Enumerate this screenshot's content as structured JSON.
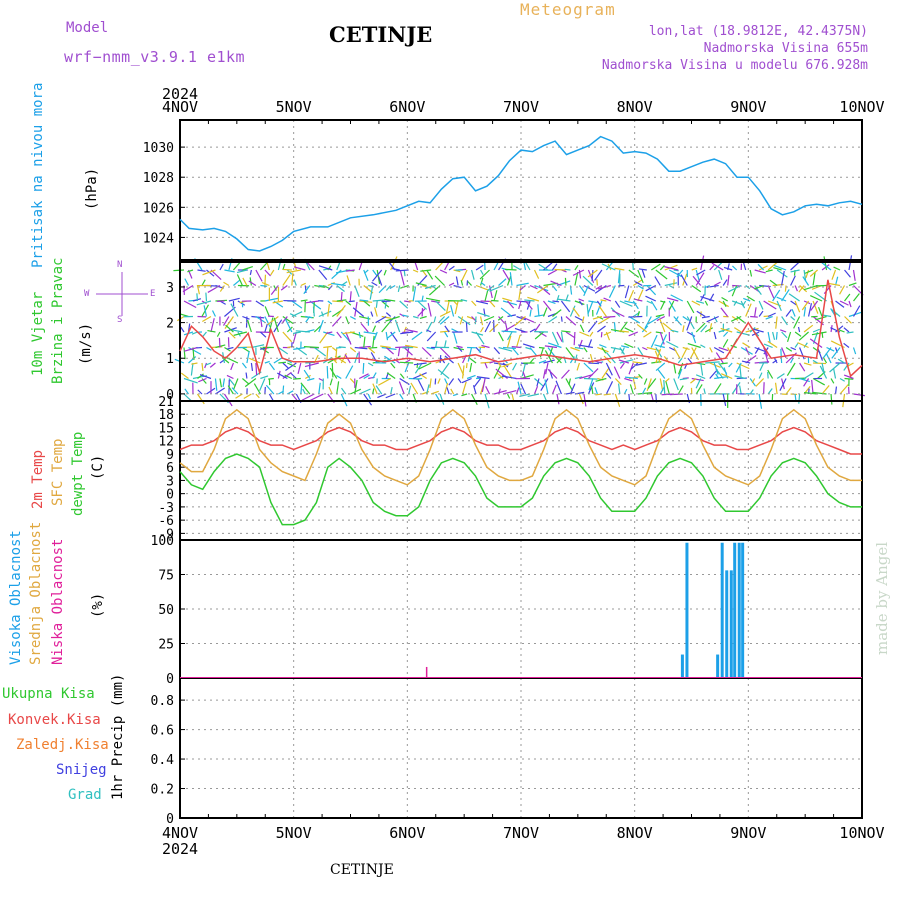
{
  "header": {
    "title": "CETINJE",
    "model_label": "Model",
    "model_name": "wrf−nmm_v3.9.1  e1km",
    "product": "Meteogram",
    "lonlat": "lon,lat (18.9812E, 42.4375N)",
    "altitude": "Nadmorska Visina 655m",
    "model_altitude": "Nadmorska Visina u modelu 676.928m",
    "credit": "made by Angel",
    "footer_title": "CETINJE"
  },
  "colors": {
    "pressure": "#1ca0e8",
    "temp2m": "#e84848",
    "sfc_temp": "#e0a840",
    "dewpoint": "#30c830",
    "high_cloud": "#1ca0e8",
    "low_cloud": "#e0209a",
    "precip_total": "#30c830",
    "precip_conv": "#e84848",
    "precip_frozen": "#f08030",
    "snow": "#4040e0",
    "grad": "#30c0c0"
  },
  "time_axis": {
    "year": "2024",
    "ticks": [
      "4NOV",
      "5NOV",
      "6NOV",
      "7NOV",
      "8NOV",
      "9NOV",
      "10NOV"
    ]
  },
  "panel_labels": {
    "pressure": [
      "Pritisak na nivou mora",
      "(hPa)"
    ],
    "wind": [
      "10m Vjetar",
      "Brzina i Pravac",
      "(m/s)"
    ],
    "compass": {
      "n": "N",
      "e": "E",
      "w": "W",
      "s": "S"
    },
    "temp": [
      "2m Temp",
      "SFC Temp",
      "dewpt Temp",
      "(C)"
    ],
    "cloud": [
      "Visoka Oblacnost",
      "Srednja Oblacnost",
      "Niska Oblacnost",
      "(%)"
    ],
    "precip_unit": "1hr Precip (mm)",
    "precip_legend": [
      "Ukupna Kisa",
      "Konvek.Kisa",
      "Zaledj.Kisa",
      "Snijeg",
      "Grad"
    ]
  },
  "chart_data": [
    {
      "type": "line",
      "ylabel": "(hPa)",
      "yticks": [
        "1024",
        "1026",
        "1028",
        "1030"
      ],
      "ylim": [
        1022.5,
        1031.8
      ],
      "x": [
        0,
        0.08,
        0.2,
        0.3,
        0.4,
        0.5,
        0.6,
        0.7,
        0.8,
        0.9,
        1.0,
        1.15,
        1.3,
        1.5,
        1.7,
        1.9,
        2.1,
        2.2,
        2.3,
        2.4,
        2.5,
        2.6,
        2.7,
        2.8,
        2.9,
        3.0,
        3.1,
        3.2,
        3.3,
        3.4,
        3.5,
        3.6,
        3.7,
        3.8,
        3.9,
        4.0,
        4.1,
        4.2,
        4.3,
        4.4,
        4.5,
        4.6,
        4.7,
        4.8,
        4.9,
        5.0,
        5.1,
        5.2,
        5.3,
        5.4,
        5.5,
        5.6,
        5.7,
        5.8,
        5.9,
        6.0
      ],
      "values": [
        1025.2,
        1024.6,
        1024.5,
        1024.6,
        1024.4,
        1023.9,
        1023.2,
        1023.1,
        1023.4,
        1023.8,
        1024.4,
        1024.7,
        1024.7,
        1025.3,
        1025.5,
        1025.8,
        1026.4,
        1026.3,
        1027.2,
        1027.9,
        1028.0,
        1027.1,
        1027.4,
        1028.1,
        1029.1,
        1029.8,
        1029.7,
        1030.1,
        1030.4,
        1029.5,
        1029.8,
        1030.1,
        1030.7,
        1030.4,
        1029.6,
        1029.7,
        1029.6,
        1029.2,
        1028.4,
        1028.4,
        1028.7,
        1029.0,
        1029.2,
        1028.9,
        1028.0,
        1028.0,
        1027.1,
        1025.9,
        1025.5,
        1025.7,
        1026.1,
        1026.2,
        1026.1,
        1026.3,
        1026.4,
        1026.2
      ],
      "series_color_key": "pressure"
    },
    {
      "type": "line",
      "ylabel": "(m/s)",
      "yticks": [
        "0",
        "1",
        "2",
        "3"
      ],
      "ylim": [
        -0.2,
        3.7
      ],
      "x": [
        0,
        0.1,
        0.2,
        0.3,
        0.4,
        0.5,
        0.6,
        0.7,
        0.8,
        0.9,
        1.0,
        1.2,
        1.4,
        1.6,
        1.8,
        2.0,
        2.2,
        2.4,
        2.6,
        2.8,
        3.0,
        3.2,
        3.4,
        3.6,
        3.8,
        4.0,
        4.2,
        4.4,
        4.6,
        4.8,
        5.0,
        5.2,
        5.4,
        5.6,
        5.7,
        5.8,
        5.9,
        6.0
      ],
      "values": [
        1.2,
        1.9,
        1.6,
        1.2,
        1.0,
        1.3,
        1.7,
        0.6,
        1.8,
        1.0,
        0.9,
        0.9,
        1.0,
        1.0,
        0.9,
        1.0,
        0.9,
        1.0,
        1.1,
        0.9,
        1.0,
        1.1,
        1.0,
        0.9,
        1.0,
        1.1,
        1.0,
        0.8,
        0.9,
        1.0,
        2.0,
        1.0,
        1.1,
        1.0,
        3.2,
        1.6,
        0.5,
        0.8
      ],
      "series_color_key": "temp2m"
    },
    {
      "type": "line",
      "ylabel": "(C)",
      "yticks": [
        "-9",
        "-6",
        "-3",
        "0",
        "3",
        "6",
        "9",
        "12",
        "15",
        "18",
        "21"
      ],
      "ylim": [
        -10.5,
        21
      ],
      "x": [
        0,
        0.1,
        0.2,
        0.3,
        0.4,
        0.5,
        0.6,
        0.7,
        0.8,
        0.9,
        1.0,
        1.1,
        1.2,
        1.3,
        1.4,
        1.5,
        1.6,
        1.7,
        1.8,
        1.9,
        2.0,
        2.1,
        2.2,
        2.3,
        2.4,
        2.5,
        2.6,
        2.7,
        2.8,
        2.9,
        3.0,
        3.1,
        3.2,
        3.3,
        3.4,
        3.5,
        3.6,
        3.7,
        3.8,
        3.9,
        4.0,
        4.1,
        4.2,
        4.3,
        4.4,
        4.5,
        4.6,
        4.7,
        4.8,
        4.9,
        5.0,
        5.1,
        5.2,
        5.3,
        5.4,
        5.5,
        5.6,
        5.7,
        5.8,
        5.9,
        6.0
      ],
      "series": [
        {
          "name": "2m Temp",
          "color_key": "temp2m",
          "values": [
            10,
            11,
            11,
            12,
            14,
            15,
            14,
            12,
            11,
            11,
            10,
            11,
            12,
            14,
            15,
            14,
            12,
            11,
            11,
            10,
            10,
            11,
            12,
            14,
            15,
            14,
            12,
            11,
            11,
            10,
            10,
            11,
            12,
            14,
            15,
            14,
            12,
            11,
            10,
            11,
            10,
            11,
            12,
            14,
            15,
            14,
            12,
            11,
            11,
            10,
            10,
            11,
            12,
            14,
            15,
            14,
            12,
            11,
            10,
            9,
            9
          ]
        },
        {
          "name": "SFC Temp",
          "color_key": "sfc_temp",
          "values": [
            7,
            5,
            5,
            10,
            17,
            19,
            17,
            10,
            7,
            5,
            4,
            3,
            9,
            16,
            18,
            16,
            10,
            6,
            4,
            3,
            2,
            4,
            10,
            17,
            19,
            17,
            11,
            6,
            4,
            3,
            3,
            4,
            10,
            17,
            19,
            17,
            11,
            6,
            4,
            3,
            2,
            4,
            11,
            17,
            19,
            17,
            11,
            6,
            4,
            3,
            2,
            4,
            10,
            17,
            19,
            17,
            11,
            6,
            4,
            3,
            3
          ]
        },
        {
          "name": "dewpt Temp",
          "color_key": "dewpoint",
          "values": [
            5,
            2,
            1,
            5,
            8,
            9,
            8,
            6,
            -2,
            -7,
            -7,
            -6,
            -2,
            6,
            8,
            6,
            3,
            -2,
            -4,
            -5,
            -5,
            -3,
            3,
            7,
            8,
            7,
            4,
            -1,
            -3,
            -3,
            -3,
            -1,
            4,
            7,
            8,
            7,
            4,
            -1,
            -4,
            -4,
            -4,
            -1,
            4,
            7,
            8,
            7,
            4,
            -1,
            -4,
            -4,
            -4,
            -1,
            4,
            7,
            8,
            7,
            4,
            0,
            -2,
            -3,
            -3
          ]
        }
      ]
    },
    {
      "type": "bar",
      "ylabel": "(%)",
      "yticks": [
        "0",
        "25",
        "50",
        "75",
        "100"
      ],
      "ylim": [
        0,
        100
      ],
      "series": [
        {
          "name": "Visoka Oblacnost",
          "color_key": "high_cloud",
          "x": [
            4.42,
            4.46,
            4.73,
            4.77,
            4.81,
            4.85,
            4.88,
            4.92,
            4.95
          ],
          "values": [
            17,
            98,
            17,
            98,
            78,
            78,
            98,
            98,
            98
          ]
        },
        {
          "name": "Niska Oblacnost",
          "color_key": "low_cloud",
          "x": [
            2.17
          ],
          "values": [
            8
          ]
        }
      ]
    },
    {
      "type": "bar",
      "ylabel": "1hr Precip (mm)",
      "yticks": [
        "0",
        "0.2",
        "0.4",
        "0.6",
        "0.8"
      ],
      "ylim": [
        0,
        0.95
      ],
      "series": [
        {
          "name": "Ukupna Kisa",
          "color_key": "precip_total",
          "x": [],
          "values": []
        }
      ]
    }
  ]
}
